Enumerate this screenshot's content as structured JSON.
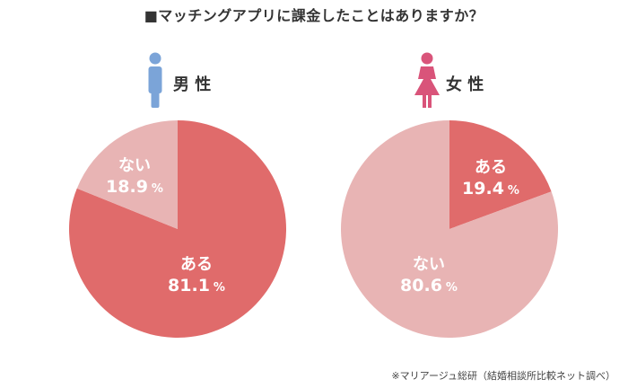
{
  "title": "■マッチングアプリに課金したことはありますか？",
  "source": "※マリアージュ総研（結婚相談所比較ネット調べ）",
  "colors": {
    "primary": "#e06b6b",
    "secondary": "#e8b4b4",
    "male": "#7ba4d8",
    "female": "#d9547a"
  },
  "chart_data": [
    {
      "type": "pie",
      "title": "男 性",
      "icon": "male-icon",
      "slices": [
        {
          "label": "ある",
          "value": 81.1,
          "value_text": "81.1",
          "unit": "%",
          "color": "#e06b6b"
        },
        {
          "label": "ない",
          "value": 18.9,
          "value_text": "18.9",
          "unit": "%",
          "color": "#e8b4b4"
        }
      ]
    },
    {
      "type": "pie",
      "title": "女 性",
      "icon": "female-icon",
      "slices": [
        {
          "label": "ある",
          "value": 19.4,
          "value_text": "19.4",
          "unit": "%",
          "color": "#e06b6b"
        },
        {
          "label": "ない",
          "value": 80.6,
          "value_text": "80.6",
          "unit": "%",
          "color": "#e8b4b4"
        }
      ]
    }
  ]
}
